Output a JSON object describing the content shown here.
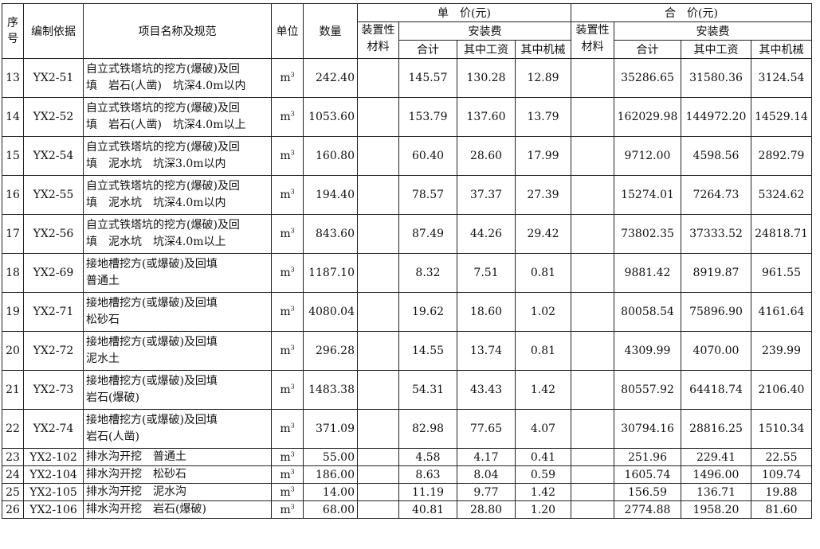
{
  "header": {
    "seq": "序号",
    "basis": "编制依据",
    "item": "项目名称及规范",
    "unit": "单位",
    "qty": "数量",
    "unit_price_group": "单　价(元)",
    "total_price_group": "合　价(元)",
    "device_material": "装置性材料",
    "install_fee": "安装费",
    "subtotal": "合计",
    "labor": "其中工资",
    "machinery": "其中机械"
  },
  "rows": [
    {
      "seq": "13",
      "basis": "YX2-51",
      "name": [
        "自立式铁塔坑的挖方(爆破)及回",
        "填　岩石(人凿)　坑深4.0m以内"
      ],
      "unit": "m",
      "qty": "242.40",
      "up_total": "145.57",
      "up_labor": "130.28",
      "up_mach": "12.89",
      "tp_total": "35286.65",
      "tp_labor": "31580.36",
      "tp_mach": "3124.54"
    },
    {
      "seq": "14",
      "basis": "YX2-52",
      "name": [
        "自立式铁塔坑的挖方(爆破)及回",
        "填　岩石(人凿)　坑深4.0m以上"
      ],
      "unit": "m",
      "qty": "1053.60",
      "up_total": "153.79",
      "up_labor": "137.60",
      "up_mach": "13.79",
      "tp_total": "162029.98",
      "tp_labor": "144972.20",
      "tp_mach": "14529.14"
    },
    {
      "seq": "15",
      "basis": "YX2-54",
      "name": [
        "自立式铁塔坑的挖方(爆破)及回",
        "填　泥水坑　坑深3.0m以内"
      ],
      "unit": "m",
      "qty": "160.80",
      "up_total": "60.40",
      "up_labor": "28.60",
      "up_mach": "17.99",
      "tp_total": "9712.00",
      "tp_labor": "4598.56",
      "tp_mach": "2892.79"
    },
    {
      "seq": "16",
      "basis": "YX2-55",
      "name": [
        "自立式铁塔坑的挖方(爆破)及回",
        "填　泥水坑　坑深4.0m以内"
      ],
      "unit": "m",
      "qty": "194.40",
      "up_total": "78.57",
      "up_labor": "37.37",
      "up_mach": "27.39",
      "tp_total": "15274.01",
      "tp_labor": "7264.73",
      "tp_mach": "5324.62"
    },
    {
      "seq": "17",
      "basis": "YX2-56",
      "name": [
        "自立式铁塔坑的挖方(爆破)及回",
        "填　泥水坑　坑深4.0m以上"
      ],
      "unit": "m",
      "qty": "843.60",
      "up_total": "87.49",
      "up_labor": "44.26",
      "up_mach": "29.42",
      "tp_total": "73802.35",
      "tp_labor": "37333.52",
      "tp_mach": "24818.71"
    },
    {
      "seq": "18",
      "basis": "YX2-69",
      "name": [
        "接地槽挖方(或爆破)及回填",
        "普通土"
      ],
      "unit": "m",
      "qty": "1187.10",
      "up_total": "8.32",
      "up_labor": "7.51",
      "up_mach": "0.81",
      "tp_total": "9881.42",
      "tp_labor": "8919.87",
      "tp_mach": "961.55"
    },
    {
      "seq": "19",
      "basis": "YX2-71",
      "name": [
        "接地槽挖方(或爆破)及回填",
        "松砂石"
      ],
      "unit": "m",
      "qty": "4080.04",
      "up_total": "19.62",
      "up_labor": "18.60",
      "up_mach": "1.02",
      "tp_total": "80058.54",
      "tp_labor": "75896.90",
      "tp_mach": "4161.64"
    },
    {
      "seq": "20",
      "basis": "YX2-72",
      "name": [
        "接地槽挖方(或爆破)及回填",
        "泥水土"
      ],
      "unit": "m",
      "qty": "296.28",
      "up_total": "14.55",
      "up_labor": "13.74",
      "up_mach": "0.81",
      "tp_total": "4309.99",
      "tp_labor": "4070.00",
      "tp_mach": "239.99"
    },
    {
      "seq": "21",
      "basis": "YX2-73",
      "name": [
        "接地槽挖方(或爆破)及回填",
        "岩石(爆破)"
      ],
      "unit": "m",
      "qty": "1483.38",
      "up_total": "54.31",
      "up_labor": "43.43",
      "up_mach": "1.42",
      "tp_total": "80557.92",
      "tp_labor": "64418.74",
      "tp_mach": "2106.40"
    },
    {
      "seq": "22",
      "basis": "YX2-74",
      "name": [
        "接地槽挖方(或爆破)及回填",
        "岩石(人凿)"
      ],
      "unit": "m",
      "qty": "371.09",
      "up_total": "82.98",
      "up_labor": "77.65",
      "up_mach": "4.07",
      "tp_total": "30794.16",
      "tp_labor": "28816.25",
      "tp_mach": "1510.34"
    },
    {
      "seq": "23",
      "basis": "YX2-102",
      "name": [
        "排水沟开挖　普通土"
      ],
      "unit": "m",
      "qty": "55.00",
      "up_total": "4.58",
      "up_labor": "4.17",
      "up_mach": "0.41",
      "tp_total": "251.96",
      "tp_labor": "229.41",
      "tp_mach": "22.55"
    },
    {
      "seq": "24",
      "basis": "YX2-104",
      "name": [
        "排水沟开挖　松砂石"
      ],
      "unit": "m",
      "qty": "186.00",
      "up_total": "8.63",
      "up_labor": "8.04",
      "up_mach": "0.59",
      "tp_total": "1605.74",
      "tp_labor": "1496.00",
      "tp_mach": "109.74"
    },
    {
      "seq": "25",
      "basis": "YX2-105",
      "name": [
        "排水沟开挖　泥水沟"
      ],
      "unit": "m",
      "qty": "14.00",
      "up_total": "11.19",
      "up_labor": "9.77",
      "up_mach": "1.42",
      "tp_total": "156.59",
      "tp_labor": "136.71",
      "tp_mach": "19.88"
    },
    {
      "seq": "26",
      "basis": "YX2-106",
      "name": [
        "排水沟开挖　岩石(爆破)"
      ],
      "unit": "m",
      "qty": "68.00",
      "up_total": "40.81",
      "up_labor": "28.80",
      "up_mach": "1.20",
      "tp_total": "2774.88",
      "tp_labor": "1958.20",
      "tp_mach": "81.60"
    }
  ],
  "unit_superscript": "3"
}
